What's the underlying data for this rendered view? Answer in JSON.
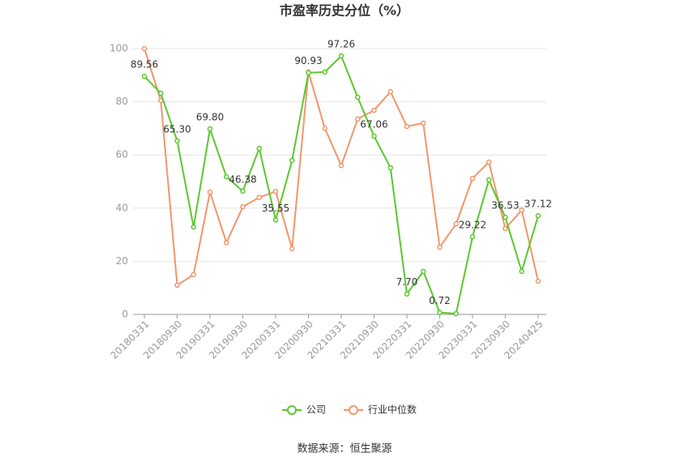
{
  "chart_data": {
    "type": "line",
    "title": "市盈率历史分位（%）",
    "source": "数据来源：恒生聚源",
    "categories": [
      "20180331",
      null,
      "20180930",
      null,
      "20190331",
      null,
      "20190930",
      null,
      "20200331",
      null,
      "20200930",
      null,
      "20210331",
      null,
      "20210930",
      null,
      "20220331",
      null,
      "20220930",
      null,
      "20230331",
      null,
      "20230930",
      null,
      "20240425"
    ],
    "series": [
      {
        "name": "公司",
        "color": "#5cc72f",
        "values": [
          89.56,
          83.2,
          65.3,
          32.9,
          69.8,
          51.8,
          46.38,
          62.5,
          35.55,
          57.9,
          90.93,
          91.2,
          97.26,
          81.7,
          67.06,
          55.2,
          7.7,
          16.2,
          0.72,
          0.3,
          29.22,
          50.6,
          36.53,
          16.2,
          37.12
        ],
        "value_labels": [
          "89.56",
          null,
          "65.30",
          null,
          "69.80",
          null,
          "46.38",
          null,
          "35.55",
          null,
          "90.93",
          null,
          "97.26",
          null,
          "67.06",
          null,
          "7.70",
          null,
          "0.72",
          null,
          "29.22",
          null,
          "36.53",
          null,
          "37.12"
        ]
      },
      {
        "name": "行业中位数",
        "color": "#f2956b",
        "values": [
          100,
          80.5,
          11,
          15,
          46,
          27,
          40.5,
          44,
          46.3,
          24.7,
          91.2,
          70,
          56,
          73.5,
          76.8,
          83.8,
          70.7,
          72,
          25.3,
          34.1,
          51.2,
          57.3,
          32.3,
          39.3,
          12.5
        ]
      }
    ],
    "ylim": [
      0,
      100
    ],
    "yticks": [
      0,
      20,
      40,
      60,
      80,
      100
    ],
    "grid": true,
    "legend": "bottom"
  }
}
